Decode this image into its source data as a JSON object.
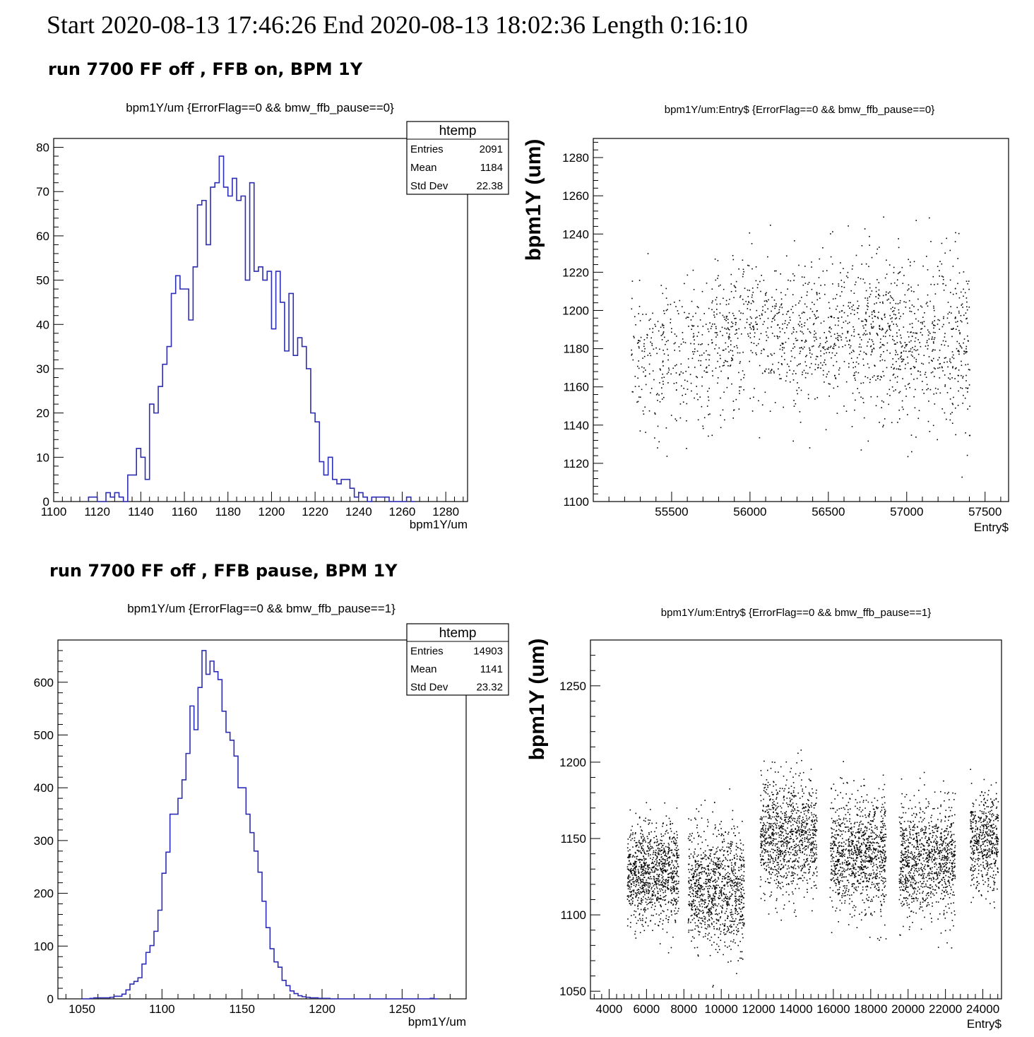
{
  "header": {
    "text": "Start   2020-08-13 17:46:26 End 2020-08-13 18:02:36 Length 0:16:10"
  },
  "sections": [
    {
      "label": "run 7700 FF off , FFB on, BPM 1Y"
    },
    {
      "label": "run 7700 FF off , FFB pause, BPM 1Y"
    }
  ],
  "colors": {
    "histogram": "#2d2db4",
    "scatter": "#000000",
    "frame": "#000000"
  },
  "chart_data": [
    {
      "type": "histogram",
      "title": "bpm1Y/um {ErrorFlag==0 && bmw_ffb_pause==0}",
      "xlabel": "bpm1Y/um",
      "ylabel": "",
      "xlim": [
        1100,
        1290
      ],
      "ylim": [
        0,
        82
      ],
      "xticks": [
        1100,
        1120,
        1140,
        1160,
        1180,
        1200,
        1220,
        1240,
        1260,
        1280
      ],
      "yticks": [
        0,
        10,
        20,
        30,
        40,
        50,
        60,
        70,
        80
      ],
      "bin_start": 1116,
      "bin_width": 2,
      "counts": [
        1,
        1,
        0,
        0,
        2,
        1,
        2,
        1,
        0,
        6,
        6,
        12,
        10,
        5,
        22,
        20,
        26,
        31,
        35,
        47,
        51,
        48,
        48,
        41,
        53,
        67,
        68,
        58,
        71,
        72,
        78,
        71,
        69,
        73,
        68,
        69,
        50,
        72,
        52,
        53,
        50,
        52,
        39,
        52,
        45,
        34,
        47,
        33,
        37,
        35,
        30,
        20,
        18,
        9,
        6,
        10,
        5,
        4,
        5,
        5,
        3,
        1,
        2,
        1,
        0,
        1,
        1,
        1,
        1,
        0,
        0,
        0,
        0,
        1,
        0
      ],
      "stats": {
        "title": "htemp",
        "rows": [
          {
            "label": "Entries",
            "value": "2091"
          },
          {
            "label": "Mean",
            "value": "1184"
          },
          {
            "label": "Std Dev",
            "value": "22.38"
          }
        ]
      }
    },
    {
      "type": "scatter",
      "title": "bpm1Y/um:Entry$ {ErrorFlag==0 && bmw_ffb_pause==0}",
      "xlabel": "Entry$",
      "ylabel": "bpm1Y (um)",
      "xlim": [
        55000,
        57650
      ],
      "ylim": [
        1100,
        1290
      ],
      "xticks": [
        55500,
        56000,
        56500,
        57000,
        57500
      ],
      "yticks": [
        1100,
        1120,
        1140,
        1160,
        1180,
        1200,
        1220,
        1240,
        1260,
        1280
      ],
      "segments": [
        {
          "x0": 55240,
          "x1": 55740,
          "mean": 1176,
          "sd": 18,
          "n": 300
        },
        {
          "x0": 55740,
          "x1": 56780,
          "mean": 1188,
          "sd": 20,
          "n": 850
        },
        {
          "x0": 56780,
          "x1": 57400,
          "mean": 1185,
          "sd": 23,
          "n": 620
        }
      ]
    },
    {
      "type": "histogram",
      "title": "bpm1Y/um {ErrorFlag==0 && bmw_ffb_pause==1}",
      "xlabel": "bpm1Y/um",
      "ylabel": "",
      "xlim": [
        1035,
        1290
      ],
      "ylim": [
        0,
        680
      ],
      "xticks": [
        1050,
        1100,
        1150,
        1200,
        1250
      ],
      "yticks": [
        0,
        100,
        200,
        300,
        400,
        500,
        600
      ],
      "bin_start": 1050,
      "bin_width": 2.5,
      "counts": [
        0,
        0,
        1,
        2,
        2,
        2,
        2,
        3,
        5,
        5,
        9,
        17,
        28,
        33,
        40,
        66,
        88,
        101,
        128,
        168,
        238,
        278,
        350,
        350,
        380,
        415,
        465,
        555,
        510,
        590,
        660,
        615,
        640,
        620,
        605,
        545,
        505,
        490,
        460,
        400,
        400,
        350,
        315,
        280,
        240,
        185,
        135,
        95,
        70,
        60,
        35,
        25,
        15,
        10,
        6,
        4,
        3,
        2,
        2,
        1,
        1,
        1,
        0,
        0,
        0,
        0,
        0,
        0,
        0,
        0,
        0,
        0,
        0,
        0,
        0,
        0,
        0,
        0,
        0,
        0,
        0,
        0,
        0,
        0,
        0,
        0,
        0,
        1,
        0
      ],
      "stats": {
        "title": "htemp",
        "rows": [
          {
            "label": "Entries",
            "value": "14903"
          },
          {
            "label": "Mean",
            "value": "1141"
          },
          {
            "label": "Std Dev",
            "value": "23.32"
          }
        ]
      }
    },
    {
      "type": "scatter",
      "title": "bpm1Y/um:Entry$ {ErrorFlag==0 && bmw_ffb_pause==1}",
      "xlabel": "Entry$",
      "ylabel": "bpm1Y (um)",
      "xlim": [
        3000,
        25000
      ],
      "ylim": [
        1045,
        1280
      ],
      "xticks": [
        4000,
        6000,
        8000,
        10000,
        12000,
        14000,
        16000,
        18000,
        20000,
        22000,
        24000
      ],
      "yticks": [
        1050,
        1100,
        1150,
        1200,
        1250
      ],
      "segments": [
        {
          "x0": 4950,
          "x1": 7700,
          "mean": 1127,
          "sd": 16,
          "n": 1000
        },
        {
          "x0": 8200,
          "x1": 11200,
          "mean": 1117,
          "sd": 20,
          "n": 1000
        },
        {
          "x0": 12050,
          "x1": 15100,
          "mean": 1150,
          "sd": 19,
          "n": 1000
        },
        {
          "x0": 15800,
          "x1": 18800,
          "mean": 1140,
          "sd": 18,
          "n": 1000
        },
        {
          "x0": 19500,
          "x1": 22500,
          "mean": 1137,
          "sd": 18,
          "n": 1000
        },
        {
          "x0": 23300,
          "x1": 24800,
          "mean": 1148,
          "sd": 16,
          "n": 500
        }
      ]
    }
  ]
}
